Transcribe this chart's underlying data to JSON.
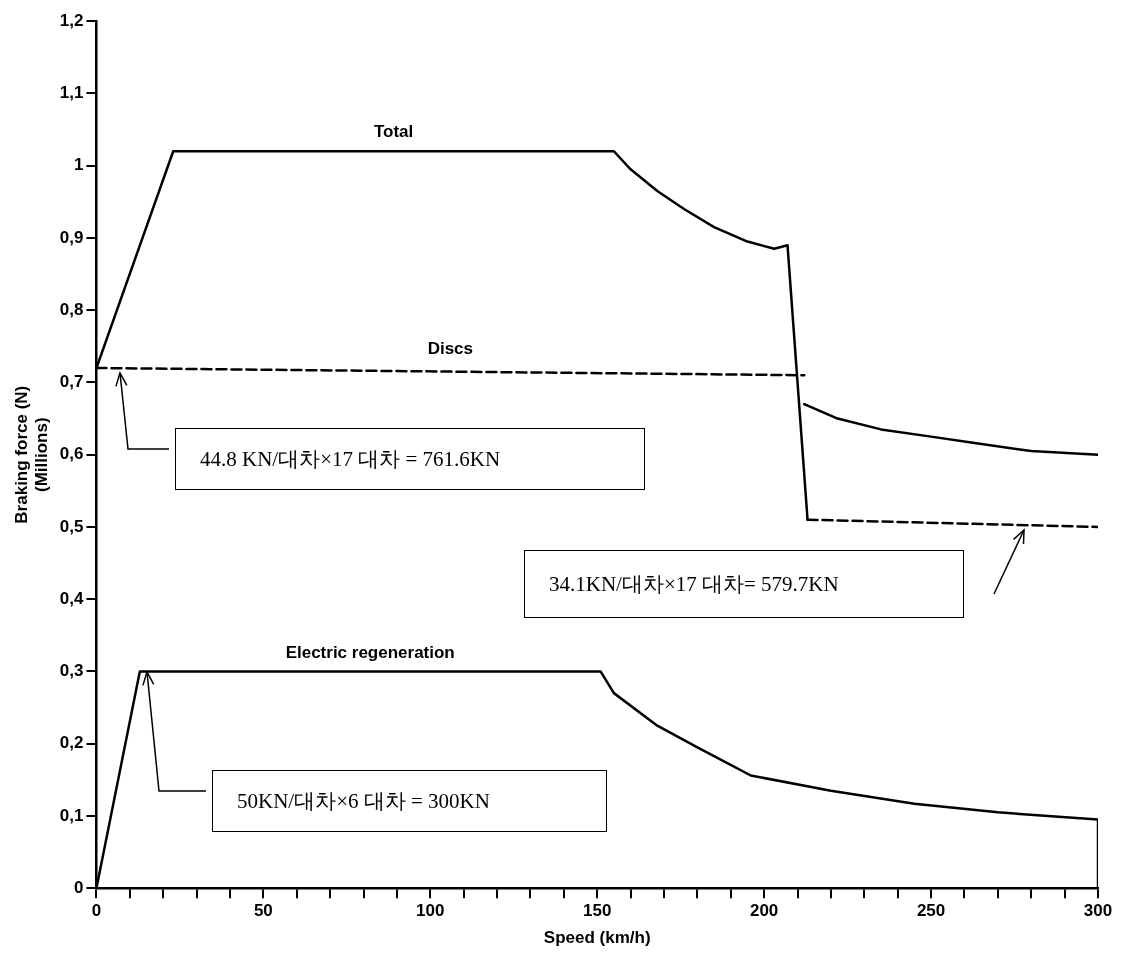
{
  "chart_data": {
    "type": "line",
    "xlabel": "Speed (km/h)",
    "ylabel": "Braking force (N)\n(Millions)",
    "xlim": [
      0,
      300
    ],
    "ylim": [
      0,
      1.2
    ],
    "xticks": [
      0,
      {
        "value": 10,
        "label": null
      },
      {
        "value": 20,
        "label": null
      },
      {
        "value": 30,
        "label": null
      },
      {
        "value": 40,
        "label": null
      },
      50,
      {
        "value": 60,
        "label": null
      },
      {
        "value": 70,
        "label": null
      },
      {
        "value": 80,
        "label": null
      },
      {
        "value": 90,
        "label": null
      },
      100,
      {
        "value": 110,
        "label": null
      },
      {
        "value": 120,
        "label": null
      },
      {
        "value": 130,
        "label": null
      },
      {
        "value": 140,
        "label": null
      },
      150,
      {
        "value": 160,
        "label": null
      },
      {
        "value": 170,
        "label": null
      },
      {
        "value": 180,
        "label": null
      },
      {
        "value": 190,
        "label": null
      },
      200,
      {
        "value": 210,
        "label": null
      },
      {
        "value": 220,
        "label": null
      },
      {
        "value": 230,
        "label": null
      },
      {
        "value": 240,
        "label": null
      },
      250,
      {
        "value": 260,
        "label": null
      },
      {
        "value": 270,
        "label": null
      },
      {
        "value": 280,
        "label": null
      },
      {
        "value": 290,
        "label": null
      },
      300
    ],
    "yticks": [
      0,
      {
        "value": 0.1,
        "label": "0,1"
      },
      {
        "value": 0.2,
        "label": "0,2"
      },
      {
        "value": 0.3,
        "label": "0,3"
      },
      {
        "value": 0.4,
        "label": "0,4"
      },
      {
        "value": 0.5,
        "label": "0,5"
      },
      {
        "value": 0.6,
        "label": "0,6"
      },
      {
        "value": 0.7,
        "label": "0,7"
      },
      {
        "value": 0.8,
        "label": "0,8"
      },
      {
        "value": 0.9,
        "label": "0,9"
      },
      1,
      {
        "value": 1.1,
        "label": "1,1"
      },
      {
        "value": 1.2,
        "label": "1,2"
      }
    ],
    "grid": false,
    "legend": false,
    "marker": "none",
    "series": [
      {
        "name": "Total",
        "color": "#000000",
        "line_style": "solid",
        "x": [
          0,
          23,
          155,
          160,
          168,
          176,
          185,
          195,
          203,
          207,
          213
        ],
        "values": [
          0.72,
          1.02,
          1.02,
          0.995,
          0.965,
          0.94,
          0.915,
          0.895,
          0.885,
          0.89,
          0.51
        ]
      },
      {
        "color": "#000000",
        "line_style": "dashed",
        "x": [
          213,
          300
        ],
        "values": [
          0.51,
          0.5
        ]
      },
      {
        "name": "Discs",
        "color": "#000000",
        "line_style": "dashed",
        "x": [
          0,
          212
        ],
        "values": [
          0.72,
          0.71
        ]
      },
      {
        "color": "#000000",
        "line_style": "solid",
        "x": [
          212,
          222,
          235,
          250,
          262,
          280,
          300
        ],
        "values": [
          0.67,
          0.65,
          0.635,
          0.625,
          0.617,
          0.605,
          0.6
        ]
      },
      {
        "name": "Electric regeneration",
        "color": "#000000",
        "line_style": "solid",
        "x": [
          0,
          13,
          151,
          155,
          168,
          180,
          196,
          220,
          245,
          270,
          300,
          300
        ],
        "values": [
          0,
          0.3,
          0.3,
          0.27,
          0.225,
          0.195,
          0.156,
          0.135,
          0.117,
          0.105,
          0.095,
          0
        ]
      }
    ],
    "annotations": [
      "44.8 KN/대차×17 대차  = 761.6KN",
      "34.1KN/대차×17 대차= 579.7KN",
      "50KN/대차×6 대차  = 300KN"
    ]
  }
}
